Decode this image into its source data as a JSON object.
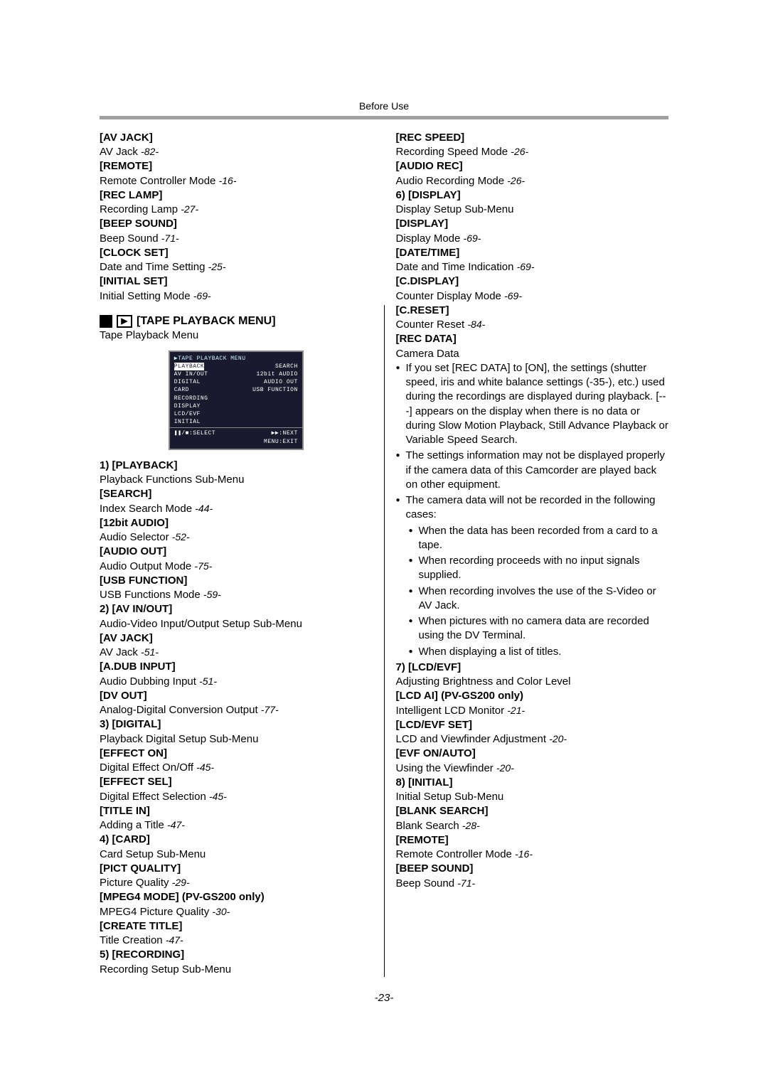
{
  "header": "Before Use",
  "pageNumber": "-23-",
  "left": {
    "items": [
      {
        "h": "[AV JACK]",
        "d": "AV Jack",
        "r": "-82-"
      },
      {
        "h": "[REMOTE]",
        "d": "Remote Controller Mode",
        "r": "-16-"
      },
      {
        "h": "[REC LAMP]",
        "d": "Recording Lamp",
        "r": "-27-"
      },
      {
        "h": "[BEEP SOUND]",
        "d": "Beep Sound",
        "r": "-71-"
      },
      {
        "h": "[CLOCK SET]",
        "d": "Date and Time Setting",
        "r": "-25-"
      },
      {
        "h": "[INITIAL SET]",
        "d": "Initial Setting Mode",
        "r": "-69-"
      }
    ],
    "sectionTitle": "[TAPE PLAYBACK MENU]",
    "sectionSub": "Tape Playback Menu",
    "menuScreen": {
      "title": "TAPE PLAYBACK MENU",
      "rows": [
        [
          "PLAYBACK",
          "SEARCH"
        ],
        [
          "AV IN/OUT",
          "12bit AUDIO"
        ],
        [
          "DIGITAL",
          "AUDIO OUT"
        ],
        [
          "CARD",
          "USB FUNCTION"
        ],
        [
          "RECORDING",
          ""
        ],
        [
          "DISPLAY",
          ""
        ],
        [
          "LCD/EVF",
          ""
        ],
        [
          "INITIAL",
          ""
        ]
      ],
      "footerL": ":SELECT",
      "footerR1": ":NEXT",
      "footerR2": "MENU:EXIT"
    },
    "items2": [
      {
        "h": "1) [PLAYBACK]",
        "d": "Playback Functions Sub-Menu",
        "r": ""
      },
      {
        "h": "[SEARCH]",
        "d": "Index Search Mode",
        "r": "-44-"
      },
      {
        "h": "[12bit AUDIO]",
        "d": "Audio Selector",
        "r": "-52-"
      },
      {
        "h": "[AUDIO OUT]",
        "d": "Audio Output Mode",
        "r": "-75-"
      },
      {
        "h": "[USB FUNCTION]",
        "d": "USB Functions Mode",
        "r": "-59-"
      },
      {
        "h": "2) [AV IN/OUT]",
        "d": "Audio-Video Input/Output Setup Sub-Menu",
        "r": ""
      },
      {
        "h": "[AV JACK]",
        "d": "AV Jack",
        "r": "-51-"
      },
      {
        "h": "[A.DUB INPUT]",
        "d": "Audio Dubbing Input",
        "r": "-51-"
      },
      {
        "h": "[DV OUT]",
        "d": "Analog-Digital Conversion Output",
        "r": "-77-"
      },
      {
        "h": "3) [DIGITAL]",
        "d": "Playback Digital Setup Sub-Menu",
        "r": ""
      },
      {
        "h": "[EFFECT ON]",
        "d": "Digital Effect On/Off",
        "r": "-45-"
      },
      {
        "h": "[EFFECT SEL]",
        "d": "Digital Effect Selection",
        "r": "-45-"
      },
      {
        "h": "[TITLE IN]",
        "d": "Adding a Title",
        "r": "-47-"
      },
      {
        "h": "4) [CARD]",
        "d": "Card Setup Sub-Menu",
        "r": ""
      },
      {
        "h": "[PICT QUALITY]",
        "d": "Picture Quality",
        "r": "-29-"
      },
      {
        "h": "[MPEG4 MODE] (PV-GS200 only)",
        "d": "MPEG4 Picture Quality",
        "r": "-30-"
      },
      {
        "h": "[CREATE TITLE]",
        "d": "Title Creation",
        "r": "-47-"
      },
      {
        "h": "5) [RECORDING]",
        "d": "Recording Setup Sub-Menu",
        "r": ""
      }
    ]
  },
  "right": {
    "items": [
      {
        "h": "[REC SPEED]",
        "d": "Recording Speed Mode",
        "r": "-26-"
      },
      {
        "h": "[AUDIO REC]",
        "d": "Audio Recording Mode",
        "r": "-26-"
      },
      {
        "h": "6) [DISPLAY]",
        "d": "Display Setup Sub-Menu",
        "r": ""
      },
      {
        "h": "[DISPLAY]",
        "d": "Display Mode",
        "r": "-69-"
      },
      {
        "h": "[DATE/TIME]",
        "d": "Date and Time Indication",
        "r": "-69-"
      },
      {
        "h": "[C.DISPLAY]",
        "d": "Counter Display Mode",
        "r": "-69-"
      },
      {
        "h": "[C.RESET]",
        "d": "Counter Reset",
        "r": "-84-"
      },
      {
        "h": "[REC DATA]",
        "d": "Camera Data",
        "r": ""
      }
    ],
    "bullets": [
      "If you set [REC DATA] to [ON], the settings (shutter speed, iris and white balance settings (-35-), etc.) used during the recordings are displayed during playback. [---] appears on the display when there is no data or during Slow Motion Playback, Still Advance Playback or Variable Speed Search.",
      "The settings information may not be displayed properly if the camera data of this Camcorder are played back on other equipment.",
      "The camera data will not be recorded in the following cases:"
    ],
    "subBullets": [
      "When the data has been recorded from a card to a tape.",
      "When recording proceeds with no input signals supplied.",
      "When recording involves the use of the S-Video or AV Jack.",
      "When pictures with no camera data are recorded using the DV Terminal.",
      "When displaying a list of titles."
    ],
    "items2": [
      {
        "h": "7) [LCD/EVF]",
        "d": "Adjusting Brightness and Color Level",
        "r": ""
      },
      {
        "h": "[LCD AI] (PV-GS200 only)",
        "d": "Intelligent LCD Monitor",
        "r": "-21-"
      },
      {
        "h": "[LCD/EVF SET]",
        "d": "LCD and Viewfinder Adjustment",
        "r": "-20-"
      },
      {
        "h": "[EVF ON/AUTO]",
        "d": "Using the Viewfinder",
        "r": "-20-"
      },
      {
        "h": "8) [INITIAL]",
        "d": "Initial Setup Sub-Menu",
        "r": ""
      },
      {
        "h": "[BLANK SEARCH]",
        "d": "Blank Search",
        "r": "-28-"
      },
      {
        "h": "[REMOTE]",
        "d": "Remote Controller Mode",
        "r": "-16-"
      },
      {
        "h": "[BEEP SOUND]",
        "d": "Beep Sound",
        "r": "-71-"
      }
    ]
  }
}
